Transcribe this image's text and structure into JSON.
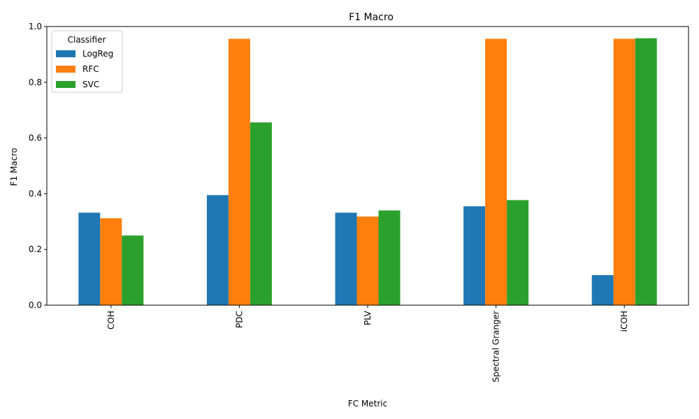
{
  "chart_data": {
    "type": "bar",
    "title": "F1 Macro",
    "xlabel": "FC Metric",
    "ylabel": "F1 Macro",
    "categories": [
      "COH",
      "PDC",
      "PLV",
      "Spectral Granger",
      "iCOH"
    ],
    "series": [
      {
        "name": "LogReg",
        "color": "#1f77b4",
        "values": [
          0.332,
          0.395,
          0.332,
          0.355,
          0.108
        ]
      },
      {
        "name": "RFC",
        "color": "#ff7f0e",
        "values": [
          0.312,
          0.956,
          0.318,
          0.956,
          0.956
        ]
      },
      {
        "name": "SVC",
        "color": "#2ca02c",
        "values": [
          0.25,
          0.656,
          0.34,
          0.377,
          0.958
        ]
      }
    ],
    "ylim": [
      0,
      1.0
    ],
    "yticks": [
      "0.0",
      "0.2",
      "0.4",
      "0.6",
      "0.8",
      "1.0"
    ],
    "legend": {
      "title": "Classifier",
      "placement": "top-left"
    },
    "grid": false
  }
}
